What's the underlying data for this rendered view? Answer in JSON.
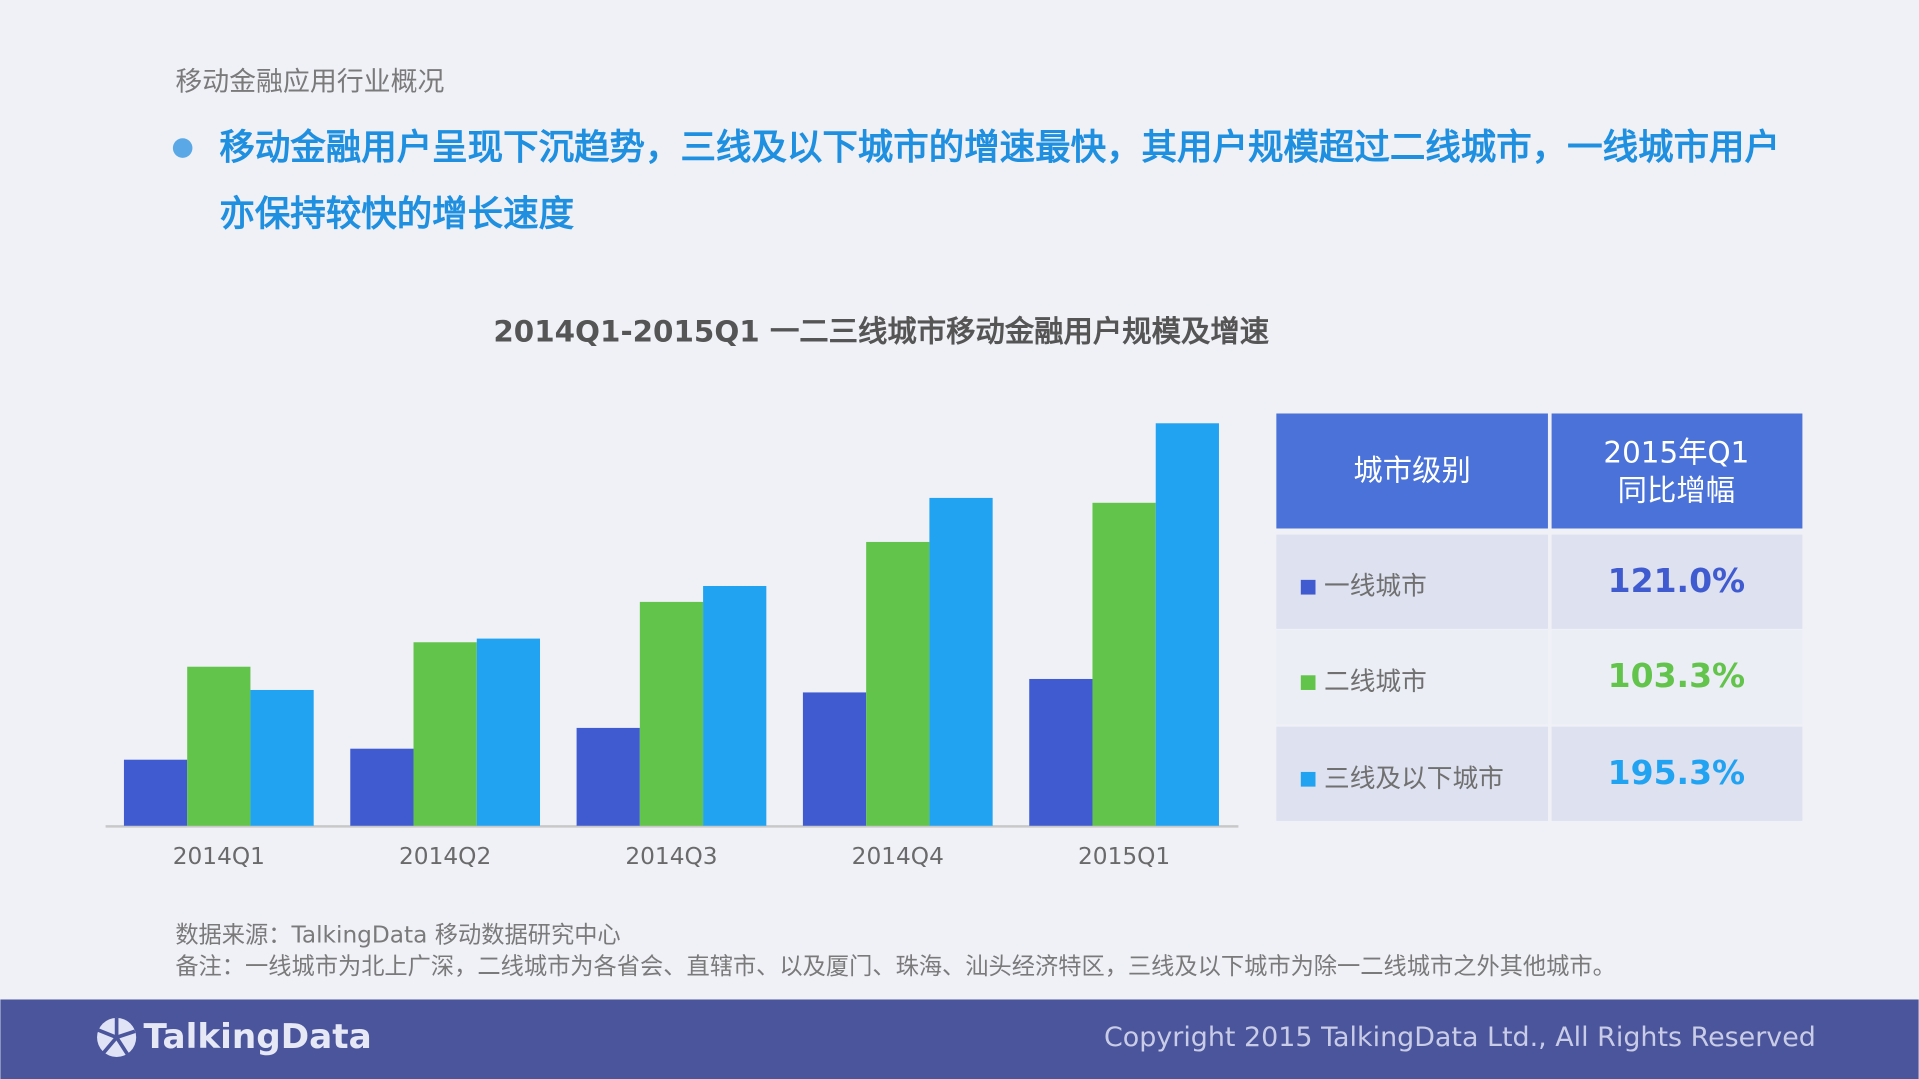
{
  "header": {
    "section": "移动金融应用行业概况",
    "headline": [
      "移动金融用户呈现下沉趋势，三线及以下城市的增速最快，其用户规模超过二线城市，一线城市用户",
      "亦保持较快的增长速度"
    ]
  },
  "chart_data": {
    "type": "bar",
    "title": "2014Q1-2015Q1  一二三线城市移动金融用户规模及增速",
    "categories": [
      "2014Q1",
      "2014Q2",
      "2014Q3",
      "2014Q4",
      "2015Q1"
    ],
    "series": [
      {
        "name": "一线城市",
        "color": "#3f5bcf",
        "values": [
          54,
          63,
          80,
          109,
          120
        ]
      },
      {
        "name": "二线城市",
        "color": "#62c44a",
        "values": [
          130,
          150,
          183,
          232,
          264
        ]
      },
      {
        "name": "三线及以下城市",
        "color": "#22a3f2",
        "values": [
          111,
          153,
          196,
          268,
          329
        ]
      }
    ],
    "ylim": [
      0,
      340
    ]
  },
  "table": {
    "header": [
      "城市级别",
      [
        "2015年Q1",
        "同比增幅"
      ]
    ],
    "rows": [
      "121.0%",
      "103.3%",
      "195.3%"
    ]
  },
  "notes": [
    "数据来源：TalkingData 移动数据研究中心",
    "备注：一线城市为北上广深，二线城市为各省会、直辖市、以及厦门、珠海、汕头经济特区，三线及以下城市为除一二线城市之外其他城市。"
  ],
  "footer": {
    "logo": "TalkingData",
    "copyright": "Copyright 2015 TalkingData Ltd., All Rights Reserved"
  }
}
